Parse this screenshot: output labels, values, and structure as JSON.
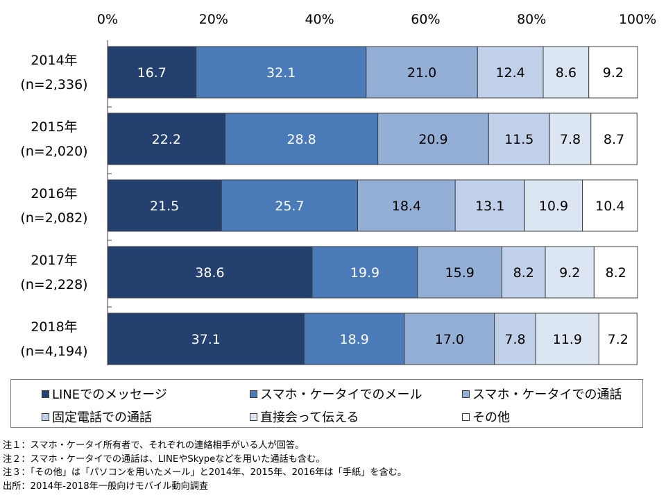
{
  "chart_data": {
    "type": "bar",
    "orientation": "horizontal",
    "stacked": "100%",
    "categories": [
      [
        "2014年",
        "(n=2,336)"
      ],
      [
        "2015年",
        "(n=2,020)"
      ],
      [
        "2016年",
        "(n=2,082)"
      ],
      [
        "2017年",
        "(n=2,228)"
      ],
      [
        "2018年",
        "(n=4,194)"
      ]
    ],
    "x_ticks": [
      "0%",
      "20%",
      "40%",
      "60%",
      "80%",
      "100%"
    ],
    "xlim": [
      0,
      100
    ],
    "series": [
      {
        "name": "LINEでのメッセージ",
        "color": "#24406f",
        "label_color": "#ffffff",
        "values": [
          16.7,
          22.2,
          21.5,
          38.6,
          37.1
        ]
      },
      {
        "name": "スマホ・ケータイでのメール",
        "color": "#4b7ab8",
        "label_color": "#ffffff",
        "values": [
          32.1,
          28.8,
          25.7,
          19.9,
          18.9
        ]
      },
      {
        "name": "スマホ・ケータイでの通話",
        "color": "#93afd5",
        "label_color": "#000000",
        "values": [
          21.0,
          20.9,
          18.4,
          15.9,
          17.0
        ]
      },
      {
        "name": "固定電話での通話",
        "color": "#bfd0e8",
        "label_color": "#000000",
        "values": [
          12.4,
          11.5,
          13.1,
          8.2,
          7.8
        ]
      },
      {
        "name": "直接会って伝える",
        "color": "#dce6f2",
        "label_color": "#000000",
        "values": [
          8.6,
          7.8,
          10.9,
          9.2,
          11.9
        ]
      },
      {
        "name": "その他",
        "color": "#ffffff",
        "label_color": "#000000",
        "values": [
          9.2,
          8.7,
          10.4,
          8.2,
          7.2
        ]
      }
    ],
    "legend_position": "bottom",
    "grid": false
  },
  "notes": [
    "注１：スマホ・ケータイ所有者で、それぞれの連絡相手がいる人が回答。",
    "注２：スマホ・ケータイでの通話は、LINEやSkypeなどを用いた通話も含む。",
    "注３：「その他」は「パソコンを用いたメール」と2014年、2015年、2016年は「手紙」を含む。",
    "出所：2014年-2018年一般向けモバイル動向調査"
  ]
}
